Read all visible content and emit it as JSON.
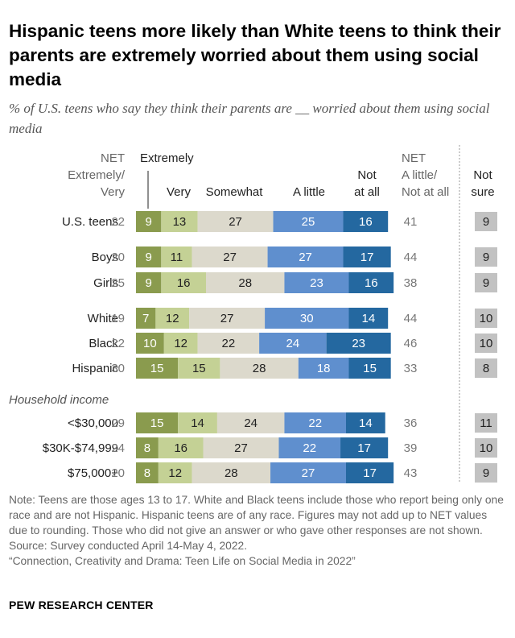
{
  "title": "Hispanic teens more likely than White teens to think their parents are extremely worried about them using social media",
  "subtitle": "% of U.S. teens who say they think their parents are __ worried about them using social media",
  "headers": {
    "net_left": [
      "NET",
      "Extremely/",
      "Very"
    ],
    "extremely": "Extremely",
    "very": "Very",
    "somewhat": "Somewhat",
    "a_little": "A little",
    "not_at_all": [
      "Not",
      "at all"
    ],
    "net_right": [
      "NET",
      "A little/",
      "Not at all"
    ],
    "not_sure": [
      "Not",
      "sure"
    ]
  },
  "section_label": "Household income",
  "notes": [
    "Note: Teens are those ages 13 to 17. White and Black teens include those who report being only one race and are not Hispanic. Hispanic teens are of any race. Figures may not add up to NET values due to rounding. Those who did not give an answer or who gave other responses are not shown.",
    "Source: Survey conducted April 14-May 4, 2022.",
    "“Connection, Creativity and Drama: Teen Life on Social Media in 2022”"
  ],
  "logo": "PEW RESEARCH CENTER",
  "colors": {
    "extremely": "#8a9b4e",
    "very": "#c4d195",
    "somewhat": "#dcd9cc",
    "a_little": "#5f8fce",
    "not_at_all": "#2468a0",
    "not_sure": "#c2c2c2",
    "net_text": "#777777"
  },
  "chart_data": {
    "type": "bar",
    "stacked": true,
    "categories": [
      "U.S. teens",
      "Boys",
      "Girls",
      "White",
      "Black",
      "Hispanic",
      "<$30,000",
      "$30K-$74,999",
      "$75,000+"
    ],
    "series": [
      {
        "name": "Extremely",
        "values": [
          9,
          9,
          9,
          7,
          10,
          15,
          15,
          8,
          8
        ]
      },
      {
        "name": "Very",
        "values": [
          13,
          11,
          16,
          12,
          12,
          15,
          14,
          16,
          12
        ]
      },
      {
        "name": "Somewhat",
        "values": [
          27,
          27,
          28,
          27,
          22,
          28,
          24,
          27,
          28
        ]
      },
      {
        "name": "A little",
        "values": [
          25,
          27,
          23,
          30,
          24,
          18,
          22,
          22,
          27
        ]
      },
      {
        "name": "Not at all",
        "values": [
          16,
          17,
          16,
          14,
          23,
          15,
          14,
          17,
          17
        ]
      }
    ],
    "net_extremely_very": [
      22,
      20,
      25,
      19,
      22,
      30,
      29,
      24,
      20
    ],
    "net_little_not_at_all": [
      41,
      44,
      38,
      44,
      46,
      33,
      36,
      39,
      43
    ],
    "not_sure": [
      9,
      9,
      9,
      10,
      10,
      8,
      11,
      10,
      9
    ]
  }
}
